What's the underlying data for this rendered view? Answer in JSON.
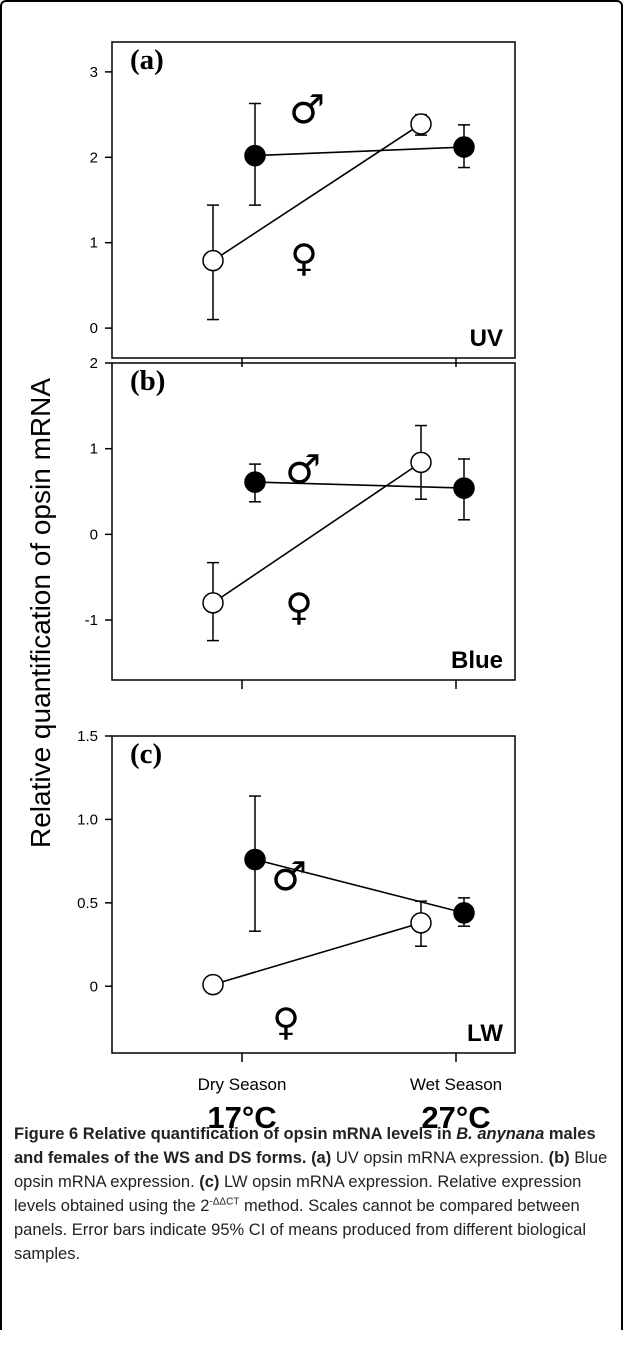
{
  "figure": {
    "ylabel": "Relative quantification of opsin mRNA",
    "x_categories": [
      "Dry Season",
      "Wet Season"
    ],
    "x_temperatures": [
      "17°C",
      "27°C"
    ],
    "male_symbol": "♂",
    "female_symbol": "♀"
  },
  "chart_data": [
    {
      "type": "line",
      "panel": "(a)",
      "corner_label": "UV",
      "categories": [
        "Dry Season",
        "Wet Season"
      ],
      "ylim": [
        -0.35,
        3.35
      ],
      "yticks": [
        0,
        1,
        2,
        3
      ],
      "ytick_labels": [
        "0",
        "1",
        "2",
        "3"
      ],
      "series": [
        {
          "sex": "male",
          "marker": "filled",
          "values": [
            2.02,
            2.12
          ],
          "ci_low": [
            1.44,
            1.88
          ],
          "ci_high": [
            2.63,
            2.38
          ]
        },
        {
          "sex": "female",
          "marker": "open",
          "values": [
            0.79,
            2.39
          ],
          "ci_low": [
            0.1,
            2.26
          ],
          "ci_high": [
            1.44,
            2.5
          ]
        }
      ]
    },
    {
      "type": "line",
      "panel": "(b)",
      "corner_label": "Blue",
      "categories": [
        "Dry Season",
        "Wet Season"
      ],
      "ylim": [
        -1.7,
        2.0
      ],
      "yticks": [
        -1,
        0,
        1,
        2
      ],
      "ytick_labels": [
        "-1",
        "0",
        "1",
        "2"
      ],
      "series": [
        {
          "sex": "male",
          "marker": "filled",
          "values": [
            0.61,
            0.54
          ],
          "ci_low": [
            0.38,
            0.17
          ],
          "ci_high": [
            0.82,
            0.88
          ]
        },
        {
          "sex": "female",
          "marker": "open",
          "values": [
            -0.8,
            0.84
          ],
          "ci_low": [
            -1.24,
            0.41
          ],
          "ci_high": [
            -0.33,
            1.27
          ]
        }
      ]
    },
    {
      "type": "line",
      "panel": "(c)",
      "corner_label": "LW",
      "categories": [
        "Dry Season",
        "Wet Season"
      ],
      "ylim": [
        -0.4,
        1.5
      ],
      "yticks": [
        0,
        0.5,
        1.0,
        1.5
      ],
      "ytick_labels": [
        "0",
        "0.5",
        "1.0",
        "1.5"
      ],
      "series": [
        {
          "sex": "male",
          "marker": "filled",
          "values": [
            0.76,
            0.44
          ],
          "ci_low": [
            0.33,
            0.36
          ],
          "ci_high": [
            1.14,
            0.53
          ]
        },
        {
          "sex": "female",
          "marker": "open",
          "values": [
            0.01,
            0.38
          ],
          "ci_low": [
            -0.03,
            0.24
          ],
          "ci_high": [
            0.06,
            0.51
          ]
        }
      ]
    }
  ],
  "caption": {
    "figure_label": "Figure 6",
    "title_part1": "Relative quantification of opsin mRNA levels in ",
    "title_italic": "B. anynana",
    "title_part2": " males and females of the WS and DS forms.",
    "a_label": "(a)",
    "a_text": " UV opsin mRNA expression. ",
    "b_label": "(b)",
    "b_text": " Blue opsin mRNA expression. ",
    "c_label": "(c)",
    "c_text": " LW opsin mRNA expression. Relative expression levels obtained using the 2",
    "superscript": "-ΔΔCT",
    "rest": " method. Scales cannot be compared between panels. Error bars indicate 95% CI of means produced from different biological samples."
  }
}
